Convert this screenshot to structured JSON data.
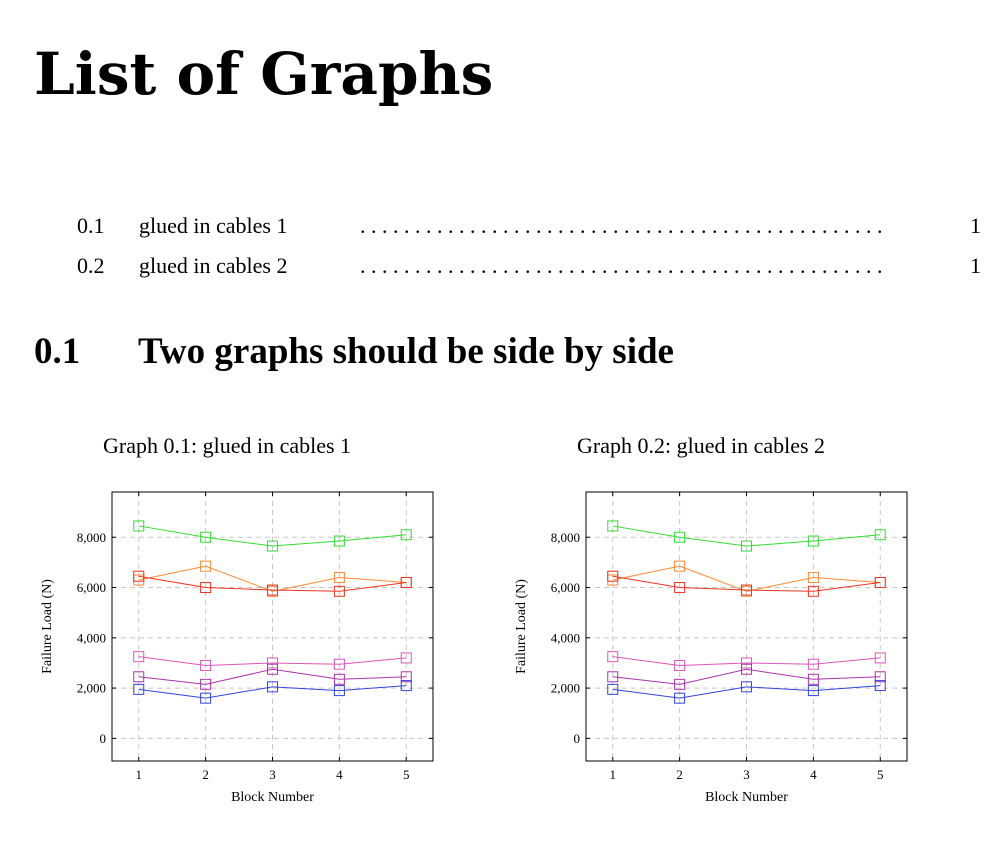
{
  "document": {
    "title": "List of Graphs"
  },
  "list_of_graphs": {
    "entries": [
      {
        "number": "0.1",
        "text": "glued in cables 1",
        "page": "1"
      },
      {
        "number": "0.2",
        "text": "glued in cables 2",
        "page": "1"
      }
    ]
  },
  "section": {
    "number": "0.1",
    "title": "Two graphs should be side by side"
  },
  "graphs": [
    {
      "caption": "Graph 0.1: glued in cables 1"
    },
    {
      "caption": "Graph 0.2: glued in cables 2"
    }
  ],
  "chart_data": [
    {
      "type": "line",
      "title": "",
      "xlabel": "Block Number",
      "ylabel": "Failure Load (N)",
      "x": [
        1,
        2,
        3,
        4,
        5
      ],
      "xlim": [
        0.6,
        5.4
      ],
      "ylim": [
        -900,
        9800
      ],
      "yticks": [
        0,
        2000,
        4000,
        6000,
        8000
      ],
      "ytick_labels": [
        "0",
        "2,000",
        "4,000",
        "6,000",
        "8,000"
      ],
      "xtick_labels": [
        "1",
        "2",
        "3",
        "4",
        "5"
      ],
      "grid": true,
      "marker": "square",
      "series": [
        {
          "color": "#33dd33",
          "values": [
            8450,
            8000,
            7650,
            7850,
            8100
          ]
        },
        {
          "color": "#ff8833",
          "values": [
            6300,
            6850,
            5850,
            6400,
            6200
          ]
        },
        {
          "color": "#ee3322",
          "values": [
            6450,
            6000,
            5900,
            5850,
            6200
          ]
        },
        {
          "color": "#dd55bb",
          "values": [
            3250,
            2900,
            3000,
            2950,
            3200
          ]
        },
        {
          "color": "#aa33aa",
          "values": [
            2450,
            2150,
            2750,
            2350,
            2450
          ]
        },
        {
          "color": "#3344dd",
          "values": [
            1950,
            1600,
            2050,
            1900,
            2100
          ]
        }
      ]
    },
    {
      "type": "line",
      "title": "",
      "xlabel": "Block Number",
      "ylabel": "Failure Load (N)",
      "x": [
        1,
        2,
        3,
        4,
        5
      ],
      "xlim": [
        0.6,
        5.4
      ],
      "ylim": [
        -900,
        9800
      ],
      "yticks": [
        0,
        2000,
        4000,
        6000,
        8000
      ],
      "ytick_labels": [
        "0",
        "2,000",
        "4,000",
        "6,000",
        "8,000"
      ],
      "xtick_labels": [
        "1",
        "2",
        "3",
        "4",
        "5"
      ],
      "grid": true,
      "marker": "square",
      "series": [
        {
          "color": "#33dd33",
          "values": [
            8450,
            8000,
            7650,
            7850,
            8100
          ]
        },
        {
          "color": "#ff8833",
          "values": [
            6300,
            6850,
            5850,
            6400,
            6200
          ]
        },
        {
          "color": "#ee3322",
          "values": [
            6450,
            6000,
            5900,
            5850,
            6200
          ]
        },
        {
          "color": "#dd55bb",
          "values": [
            3250,
            2900,
            3000,
            2950,
            3200
          ]
        },
        {
          "color": "#aa33aa",
          "values": [
            2450,
            2150,
            2750,
            2350,
            2450
          ]
        },
        {
          "color": "#3344dd",
          "values": [
            1950,
            1600,
            2050,
            1900,
            2100
          ]
        }
      ]
    }
  ]
}
